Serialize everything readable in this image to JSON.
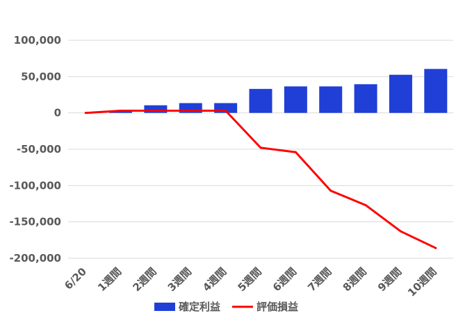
{
  "chart_data": {
    "type": "bar",
    "categories": [
      "6/20",
      "1週間",
      "2週間",
      "3週間",
      "4週間",
      "5週間",
      "6週間",
      "7週間",
      "8週間",
      "9週間",
      "10週間"
    ],
    "ylim": [
      -200000,
      100000
    ],
    "yticks": [
      "100,000",
      "50,000",
      "0",
      "-50,000",
      "-100,000",
      "-150,000",
      "-200,000"
    ],
    "ytick_values": [
      100000,
      50000,
      0,
      -50000,
      -100000,
      -150000,
      -200000
    ],
    "grid": true,
    "legend_position": "bottom",
    "series": [
      {
        "name": "確定利益",
        "kind": "bar",
        "color": "#1f3fd6",
        "values": [
          0,
          2500,
          10500,
          13500,
          13500,
          33000,
          36500,
          36500,
          39500,
          52500,
          60500
        ]
      },
      {
        "name": "評価損益",
        "kind": "line",
        "color": "#ff0000",
        "values": [
          0,
          3000,
          3000,
          3000,
          3000,
          -48000,
          -54000,
          -107000,
          -127000,
          -163000,
          -186000
        ]
      }
    ]
  }
}
